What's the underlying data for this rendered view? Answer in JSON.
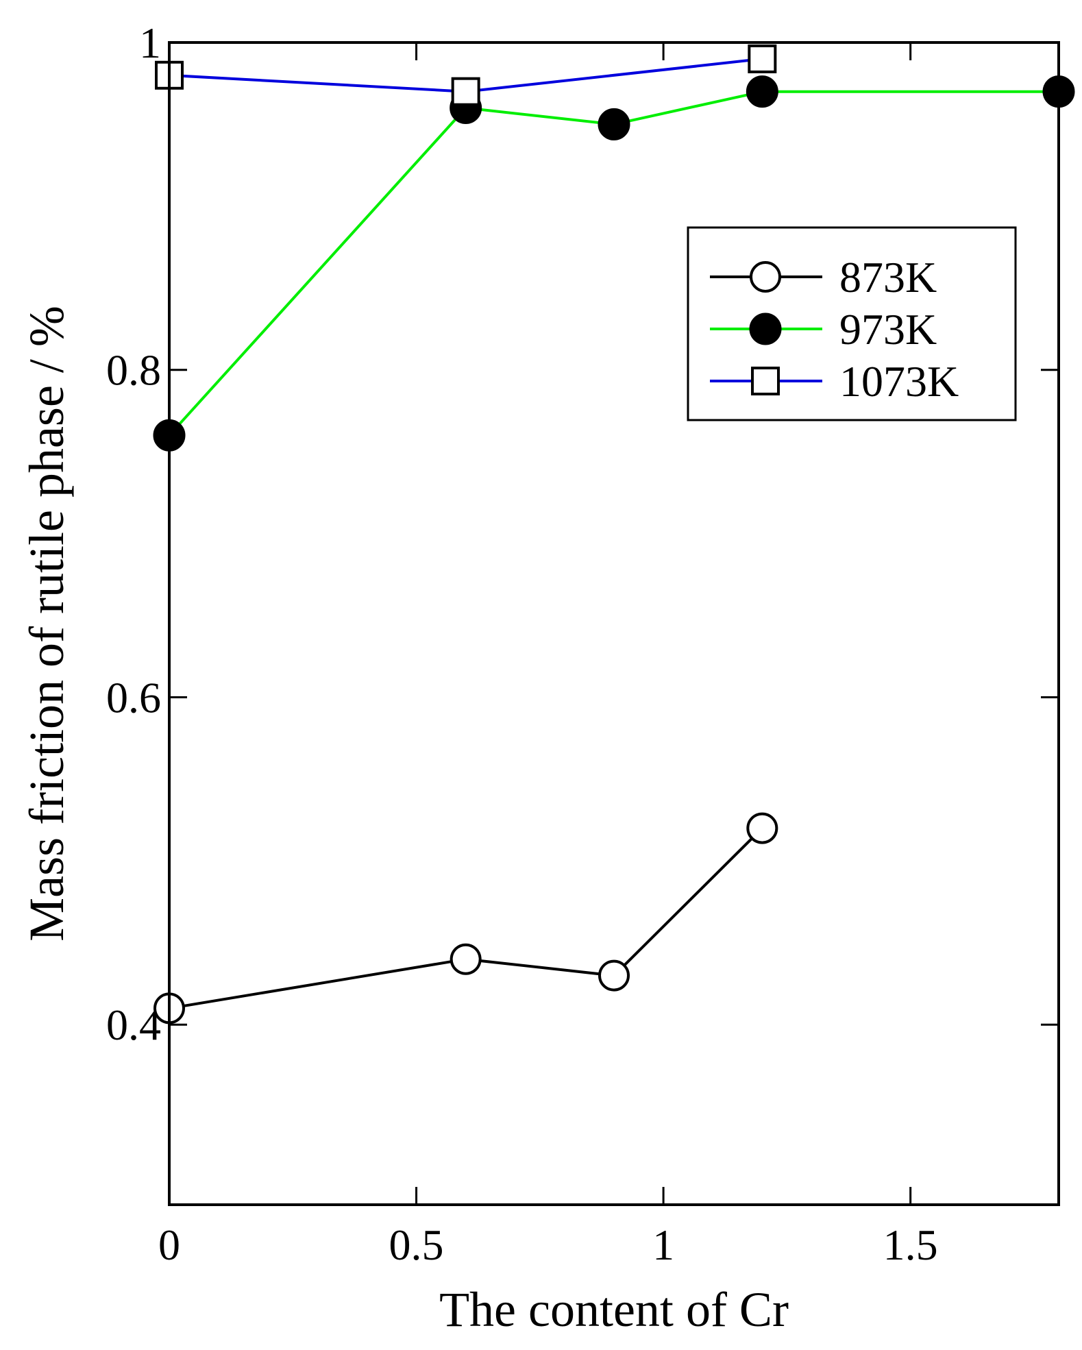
{
  "chart_data": {
    "type": "line",
    "xlabel": "The content of Cr",
    "ylabel": "Mass friction of rutile phase / %",
    "xlim": [
      0,
      1.8
    ],
    "ylim": [
      0.29,
      1.0
    ],
    "xticks": [
      0,
      0.5,
      1,
      1.5
    ],
    "xtick_labels": [
      "0",
      "0.5",
      "1",
      "1.5"
    ],
    "yticks": [
      0.4,
      0.6,
      0.8,
      1.0
    ],
    "ytick_labels": [
      "0.4",
      "0.6",
      "0.8",
      "1"
    ],
    "grid": false,
    "legend_position": "top-right",
    "series": [
      {
        "name": "873K",
        "color": "#000000",
        "marker": "open-circle",
        "x": [
          0,
          0.6,
          0.9,
          1.2
        ],
        "y": [
          0.41,
          0.44,
          0.43,
          0.52
        ]
      },
      {
        "name": "973K",
        "color": "#00ee00",
        "marker": "filled-circle",
        "x": [
          0,
          0.6,
          0.9,
          1.2,
          1.8
        ],
        "y": [
          0.76,
          0.96,
          0.95,
          0.97,
          0.97
        ]
      },
      {
        "name": "1073K",
        "color": "#0000dd",
        "marker": "open-square",
        "x": [
          0,
          0.6,
          1.2
        ],
        "y": [
          0.98,
          0.97,
          0.99
        ]
      }
    ]
  }
}
